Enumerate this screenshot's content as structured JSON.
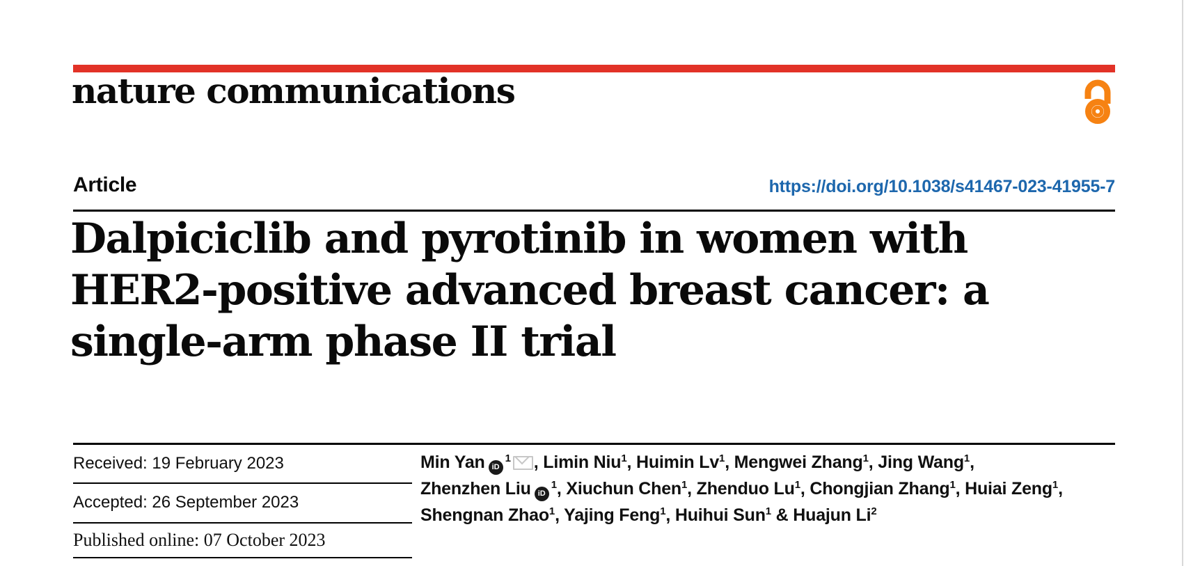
{
  "colors": {
    "brand_red": "#e23227",
    "link_blue": "#1d67ad",
    "open_access_orange": "#f68212",
    "text_black": "#0b0b0b"
  },
  "header": {
    "journal_name": "nature communications",
    "open_access_icon": "open-access-padlock-icon"
  },
  "article": {
    "type_label": "Article",
    "doi": "https://doi.org/10.1038/s41467-023-41955-7",
    "title": "Dalpiciclib and pyrotinib in women with\nHER2-positive advanced breast cancer: a\nsingle-arm phase II trial"
  },
  "dates": {
    "received": {
      "label": "Received:",
      "value": "19 February 2023"
    },
    "accepted": {
      "label": "Accepted:",
      "value": "26 September 2023"
    },
    "published": {
      "label": "Published online:",
      "value": "07 October 2023"
    }
  },
  "icons": {
    "orcid_label": "iD",
    "orcid": "orcid-id-icon",
    "envelope": "email-envelope-icon"
  },
  "authors": {
    "lines": [
      [
        {
          "t": "Min Yan"
        },
        {
          "icon": "orcid"
        },
        {
          "sup": "1"
        },
        {
          "icon": "envelope"
        },
        {
          "t": ", Limin Niu"
        },
        {
          "sup": "1"
        },
        {
          "t": ", Huimin Lv"
        },
        {
          "sup": "1"
        },
        {
          "t": ", Mengwei Zhang"
        },
        {
          "sup": "1"
        },
        {
          "t": ", Jing Wang"
        },
        {
          "sup": "1"
        },
        {
          "t": ","
        }
      ],
      [
        {
          "t": "Zhenzhen Liu"
        },
        {
          "icon": "orcid"
        },
        {
          "sup": "1"
        },
        {
          "t": ", Xiuchun Chen"
        },
        {
          "sup": "1"
        },
        {
          "t": ", Zhenduo Lu"
        },
        {
          "sup": "1"
        },
        {
          "t": ", Chongjian Zhang"
        },
        {
          "sup": "1"
        },
        {
          "t": ", Huiai Zeng"
        },
        {
          "sup": "1"
        },
        {
          "t": ","
        }
      ],
      [
        {
          "t": "Shengnan Zhao"
        },
        {
          "sup": "1"
        },
        {
          "t": ", Yajing Feng"
        },
        {
          "sup": "1"
        },
        {
          "t": ", Huihui Sun"
        },
        {
          "sup": "1"
        },
        {
          "t": " & Huajun Li"
        },
        {
          "sup": "2"
        }
      ]
    ]
  }
}
